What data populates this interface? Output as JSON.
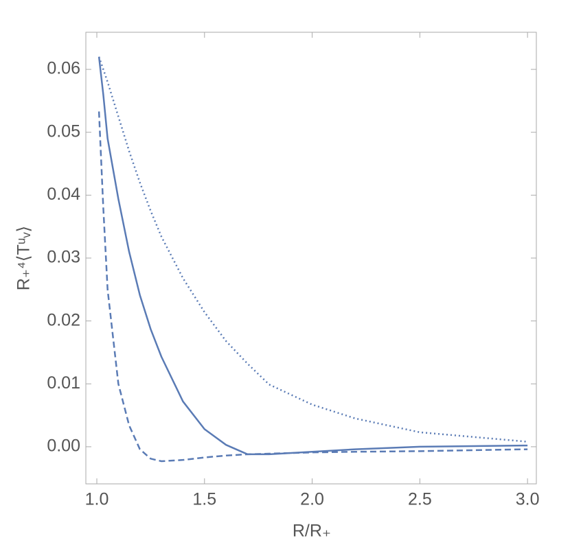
{
  "chart_data": {
    "type": "line",
    "x_label": "R/R₊",
    "y_label": "R₊⁴⟨Tᵘᵥ⟩",
    "x": [
      1.01,
      1.03,
      1.05,
      1.1,
      1.15,
      1.2,
      1.25,
      1.3,
      1.4,
      1.5,
      1.6,
      1.7,
      1.8,
      2.0,
      2.2,
      2.5,
      3.0
    ],
    "series": [
      {
        "color": "#5a7bb5",
        "line_style": "solid",
        "values": [
          0.062,
          0.056,
          0.049,
          0.0394,
          0.031,
          0.0241,
          0.0187,
          0.0143,
          0.0072,
          0.0028,
          0.0003,
          -0.0012,
          -0.0012,
          -0.0008,
          -0.0004,
          0.0,
          0.0002
        ]
      },
      {
        "color": "#5a7bb5",
        "line_style": "dashed",
        "values": [
          0.0533,
          0.038,
          0.025,
          0.01,
          0.0034,
          -0.0004,
          -0.0019,
          -0.0023,
          -0.0021,
          -0.0017,
          -0.0014,
          -0.0012,
          -0.0011,
          -0.0009,
          -0.0008,
          -0.0007,
          -0.0004
        ]
      },
      {
        "color": "#5a7bb5",
        "line_style": "dotted",
        "values": [
          0.062,
          0.06,
          0.058,
          0.0525,
          0.047,
          0.042,
          0.0375,
          0.0334,
          0.0268,
          0.0214,
          0.0168,
          0.0132,
          0.0099,
          0.0067,
          0.0045,
          0.0023,
          0.0008
        ]
      }
    ],
    "xlim": [
      0.949,
      3.041
    ],
    "ylim": [
      -0.0059,
      0.0659
    ],
    "xticks": [
      {
        "value": 1,
        "label": "1.0"
      },
      1.5,
      {
        "value": 2,
        "label": "2.0"
      },
      2.5,
      {
        "value": 3,
        "label": "3.0"
      }
    ],
    "yticks": [
      {
        "value": 0,
        "label": "0.00"
      },
      {
        "value": 0.01,
        "label": "0.01"
      },
      {
        "value": 0.02,
        "label": "0.02"
      },
      {
        "value": 0.03,
        "label": "0.03"
      },
      {
        "value": 0.04,
        "label": "0.04"
      },
      {
        "value": 0.05,
        "label": "0.05"
      },
      {
        "value": 0.06,
        "label": "0.06"
      }
    ],
    "grid": false
  }
}
